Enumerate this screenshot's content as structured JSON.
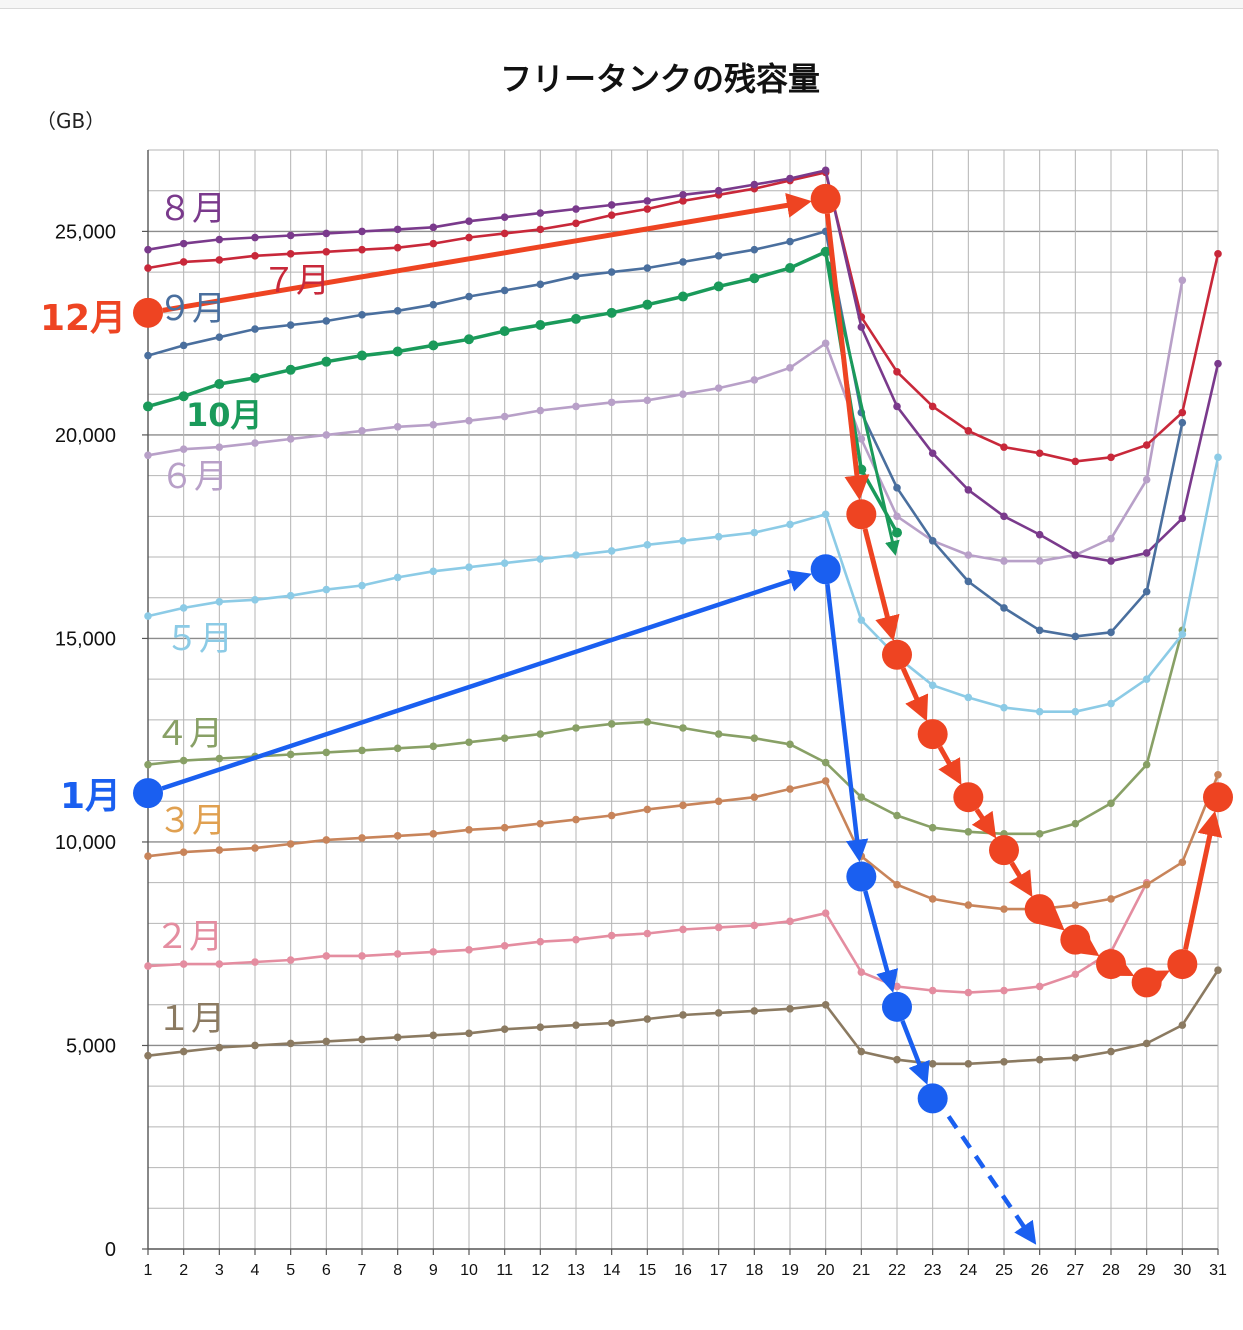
{
  "chart_data": {
    "type": "line",
    "title": "フリータンクの残容量",
    "ylabel": "（GB）",
    "xlabel": "",
    "x": [
      1,
      2,
      3,
      4,
      5,
      6,
      7,
      8,
      9,
      10,
      11,
      12,
      13,
      14,
      15,
      16,
      17,
      18,
      19,
      20,
      21,
      22,
      23,
      24,
      25,
      26,
      27,
      28,
      29,
      30,
      31
    ],
    "ylim": [
      0,
      27000
    ],
    "yticks": [
      0,
      5000,
      10000,
      15000,
      20000,
      25000
    ],
    "ytick_labels": [
      "0",
      "5,000",
      "10,000",
      "15,000",
      "20,000",
      "25,000"
    ],
    "grid": true,
    "legend": "none (series labels drawn inline next to lines)",
    "series": [
      {
        "name": "1月",
        "color": "#8b7a61",
        "values": [
          4750,
          4850,
          4950,
          5000,
          5050,
          5100,
          5150,
          5200,
          5250,
          5300,
          5400,
          5450,
          5500,
          5550,
          5650,
          5750,
          5800,
          5850,
          5900,
          6000,
          4850,
          4650,
          4550,
          4550,
          4600,
          4650,
          4700,
          4850,
          5050,
          5500,
          6850
        ]
      },
      {
        "name": "2月",
        "color": "#e48da0",
        "values": [
          6950,
          7000,
          7000,
          7050,
          7100,
          7200,
          7200,
          7250,
          7300,
          7350,
          7450,
          7550,
          7600,
          7700,
          7750,
          7850,
          7900,
          7950,
          8050,
          8250,
          6800,
          6450,
          6350,
          6300,
          6350,
          6450,
          6750,
          7300,
          9000,
          null,
          null
        ]
      },
      {
        "name": "3月",
        "color": "#c8845a",
        "values": [
          9650,
          9750,
          9800,
          9850,
          9950,
          10050,
          10100,
          10150,
          10200,
          10300,
          10350,
          10450,
          10550,
          10650,
          10800,
          10900,
          11000,
          11100,
          11300,
          11500,
          9650,
          8950,
          8600,
          8450,
          8350,
          8350,
          8450,
          8600,
          8950,
          9500,
          11650
        ]
      },
      {
        "name": "4月",
        "color": "#88a066",
        "values": [
          11900,
          12000,
          12050,
          12100,
          12150,
          12200,
          12250,
          12300,
          12350,
          12450,
          12550,
          12650,
          12800,
          12900,
          12950,
          12800,
          12650,
          12550,
          12400,
          11950,
          11100,
          10650,
          10350,
          10250,
          10200,
          10200,
          10450,
          10950,
          11900,
          15200,
          null
        ]
      },
      {
        "name": "5月",
        "color": "#8ccbe6",
        "values": [
          15550,
          15750,
          15900,
          15950,
          16050,
          16200,
          16300,
          16500,
          16650,
          16750,
          16850,
          16950,
          17050,
          17150,
          17300,
          17400,
          17500,
          17600,
          17800,
          18050,
          15450,
          14550,
          13850,
          13550,
          13300,
          13200,
          13200,
          13400,
          14000,
          15100,
          19450
        ]
      },
      {
        "name": "6月",
        "color": "#b8a0c8",
        "values": [
          19500,
          19650,
          19700,
          19800,
          19900,
          20000,
          20100,
          20200,
          20250,
          20350,
          20450,
          20600,
          20700,
          20800,
          20850,
          21000,
          21150,
          21350,
          21650,
          22250,
          19900,
          18000,
          17400,
          17050,
          16900,
          16900,
          17050,
          17450,
          18900,
          23800,
          null
        ]
      },
      {
        "name": "7月",
        "color": "#c8283a",
        "values": [
          24100,
          24250,
          24300,
          24400,
          24450,
          24500,
          24550,
          24600,
          24700,
          24850,
          24950,
          25050,
          25200,
          25400,
          25550,
          25750,
          25900,
          26050,
          26250,
          26450,
          22900,
          21550,
          20700,
          20100,
          19700,
          19550,
          19350,
          19450,
          19750,
          20550,
          24450
        ]
      },
      {
        "name": "8月",
        "color": "#7a3a8c",
        "values": [
          24550,
          24700,
          24800,
          24850,
          24900,
          24950,
          25000,
          25050,
          25100,
          25250,
          25350,
          25450,
          25550,
          25650,
          25750,
          25900,
          26000,
          26150,
          26300,
          26500,
          22650,
          20700,
          19550,
          18650,
          18000,
          17550,
          17050,
          16900,
          17100,
          17950,
          21750
        ]
      },
      {
        "name": "9月",
        "color": "#4a6f9e",
        "values": [
          21950,
          22200,
          22400,
          22600,
          22700,
          22800,
          22950,
          23050,
          23200,
          23400,
          23550,
          23700,
          23900,
          24000,
          24100,
          24250,
          24400,
          24550,
          24750,
          25000,
          20550,
          18700,
          17400,
          16400,
          15750,
          15200,
          15050,
          15150,
          16150,
          20300,
          null
        ]
      },
      {
        "name": "10月",
        "color": "#1a9a5a",
        "values": [
          20700,
          20950,
          21250,
          21400,
          21600,
          21800,
          21950,
          22050,
          22200,
          22350,
          22550,
          22700,
          22850,
          23000,
          23200,
          23400,
          23650,
          23850,
          24100,
          24500,
          19150,
          17600,
          null,
          null,
          null,
          null,
          null,
          null,
          null,
          null,
          null
        ]
      },
      {
        "name": "12月",
        "color": "#ee4422",
        "values": [
          23000,
          null,
          null,
          null,
          null,
          null,
          null,
          null,
          null,
          null,
          null,
          null,
          null,
          null,
          null,
          null,
          null,
          null,
          null,
          25800,
          18050,
          14600,
          12650,
          11100,
          9800,
          8350,
          7600,
          7000,
          6550,
          7000,
          11100
        ]
      },
      {
        "name": "1月",
        "color": "#1a5ff0",
        "values": [
          11200,
          null,
          null,
          null,
          null,
          null,
          null,
          null,
          null,
          null,
          null,
          null,
          null,
          null,
          null,
          null,
          null,
          null,
          null,
          16700,
          9150,
          5950,
          3700,
          null,
          null,
          null,
          null,
          null,
          null,
          null,
          null
        ]
      }
    ]
  },
  "labels": {
    "s8": "８月",
    "s7": "７月",
    "s9": "９月",
    "s12": "12月",
    "s10": "10月",
    "s6": "６月",
    "s5": "５月",
    "s4": "４月",
    "s1b": "1月",
    "s3": "３月",
    "s2": "２月",
    "s1": "１月"
  },
  "colors": {
    "background": "#ffffff",
    "grid": "#b4b4b4",
    "grid_major": "#8c8c8c"
  }
}
